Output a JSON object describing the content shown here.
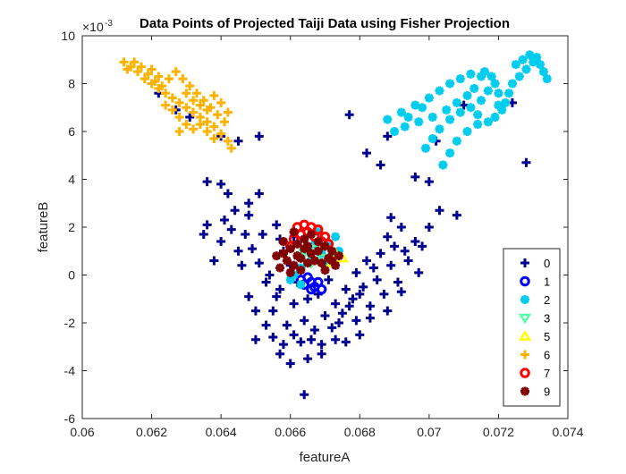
{
  "chart_data": {
    "type": "scatter",
    "title": "Data Points of Projected Taiji Data using Fisher Projection",
    "xlabel": "featureA",
    "ylabel": "featureB",
    "y_exponent_label": "×10",
    "y_exponent_power": "-3",
    "xlim": [
      0.06,
      0.074
    ],
    "ylim": [
      -6,
      10
    ],
    "x_ticks": [
      0.06,
      0.062,
      0.064,
      0.066,
      0.068,
      0.07,
      0.072,
      0.074
    ],
    "x_tick_labels": [
      "0.06",
      "0.062",
      "0.064",
      "0.066",
      "0.068",
      "0.07",
      "0.072",
      "0.074"
    ],
    "y_ticks": [
      -6,
      -4,
      -2,
      0,
      2,
      4,
      6,
      8,
      10
    ],
    "y_tick_labels": [
      "-6",
      "-4",
      "-2",
      "0",
      "2",
      "4",
      "6",
      "8",
      "10"
    ],
    "grid": false,
    "legend_position": "bottom-right",
    "series": [
      {
        "name": "0",
        "marker": "plus",
        "color": "#00008f",
        "points": [
          [
            0.0627,
            6.9
          ],
          [
            0.0622,
            7.6
          ],
          [
            0.0631,
            6.6
          ],
          [
            0.064,
            5.8
          ],
          [
            0.0645,
            5.6
          ],
          [
            0.0651,
            5.8
          ],
          [
            0.0636,
            3.9
          ],
          [
            0.064,
            3.8
          ],
          [
            0.0642,
            3.4
          ],
          [
            0.0648,
            3.0
          ],
          [
            0.0651,
            3.4
          ],
          [
            0.0644,
            2.7
          ],
          [
            0.0648,
            2.5
          ],
          [
            0.0636,
            2.1
          ],
          [
            0.0635,
            1.7
          ],
          [
            0.064,
            1.4
          ],
          [
            0.0645,
            1.0
          ],
          [
            0.0638,
            0.6
          ],
          [
            0.0651,
            0.5
          ],
          [
            0.0648,
            -0.9
          ],
          [
            0.0655,
            -1.5
          ],
          [
            0.065,
            -2.7
          ],
          [
            0.0657,
            -3.3
          ],
          [
            0.066,
            -3.7
          ],
          [
            0.0665,
            -3.5
          ],
          [
            0.0664,
            -5.0
          ],
          [
            0.0669,
            -3.3
          ],
          [
            0.0673,
            -2.7
          ],
          [
            0.0676,
            -2.8
          ],
          [
            0.068,
            -2.5
          ],
          [
            0.0683,
            -1.8
          ],
          [
            0.0688,
            -1.5
          ],
          [
            0.0692,
            -0.7
          ],
          [
            0.0697,
            0.1
          ],
          [
            0.0693,
            1.0
          ],
          [
            0.0696,
            1.4
          ],
          [
            0.0692,
            2.0
          ],
          [
            0.0689,
            2.4
          ],
          [
            0.07,
            2.0
          ],
          [
            0.0703,
            2.7
          ],
          [
            0.0708,
            2.5
          ],
          [
            0.07,
            3.9
          ],
          [
            0.0696,
            4.1
          ],
          [
            0.0686,
            4.6
          ],
          [
            0.0688,
            5.8
          ],
          [
            0.0682,
            5.1
          ],
          [
            0.0677,
            6.7
          ],
          [
            0.071,
            7.1
          ],
          [
            0.0724,
            7.2
          ],
          [
            0.0728,
            4.7
          ],
          [
            0.0702,
            5.6
          ],
          [
            0.0657,
            1.5
          ],
          [
            0.066,
            0.4
          ],
          [
            0.0654,
            0.0
          ],
          [
            0.0657,
            -0.6
          ],
          [
            0.0661,
            -1.2
          ],
          [
            0.0664,
            -1.9
          ],
          [
            0.0667,
            -2.3
          ],
          [
            0.067,
            -1.7
          ],
          [
            0.0673,
            -1.2
          ],
          [
            0.0676,
            -0.6
          ],
          [
            0.0679,
            0.1
          ],
          [
            0.0682,
            0.6
          ],
          [
            0.0685,
            -0.2
          ],
          [
            0.0687,
            -0.8
          ],
          [
            0.0683,
            -1.3
          ],
          [
            0.0679,
            -1.9
          ],
          [
            0.0662,
            -0.3
          ],
          [
            0.0665,
            -1.0
          ],
          [
            0.0668,
            -0.8
          ],
          [
            0.0671,
            -0.2
          ],
          [
            0.0659,
            -2.1
          ],
          [
            0.0656,
            -0.9
          ],
          [
            0.0653,
            -0.3
          ],
          [
            0.0663,
            -2.8
          ],
          [
            0.0672,
            -2.2
          ],
          [
            0.0675,
            -1.6
          ],
          [
            0.0678,
            -1.0
          ],
          [
            0.0681,
            -0.5
          ],
          [
            0.0684,
            0.3
          ],
          [
            0.0686,
            0.9
          ],
          [
            0.0689,
            0.4
          ],
          [
            0.0691,
            -0.3
          ],
          [
            0.0658,
            1.0
          ],
          [
            0.0661,
            1.6
          ],
          [
            0.0656,
            2.1
          ],
          [
            0.0652,
            1.7
          ],
          [
            0.0649,
            1.1
          ],
          [
            0.0646,
            0.4
          ],
          [
            0.0643,
            1.9
          ],
          [
            0.0641,
            2.3
          ],
          [
            0.0647,
            1.7
          ],
          [
            0.065,
            -1.5
          ],
          [
            0.0653,
            -2.1
          ],
          [
            0.0655,
            -2.6
          ],
          [
            0.0658,
            -2.9
          ],
          [
            0.0661,
            -2.5
          ],
          [
            0.0666,
            -2.7
          ],
          [
            0.0669,
            -2.9
          ],
          [
            0.0674,
            -2.0
          ],
          [
            0.0677,
            -1.3
          ],
          [
            0.068,
            -0.8
          ],
          [
            0.0688,
            1.6
          ],
          [
            0.069,
            1.2
          ],
          [
            0.0694,
            0.6
          ],
          [
            0.0698,
            1.2
          ]
        ]
      },
      {
        "name": "1",
        "marker": "circle",
        "color": "#0000ff",
        "points": [
          [
            0.0664,
            -0.4
          ],
          [
            0.0666,
            -0.6
          ],
          [
            0.0668,
            -0.3
          ],
          [
            0.0665,
            -0.1
          ],
          [
            0.0667,
            -0.5
          ],
          [
            0.0663,
            -0.2
          ],
          [
            0.0669,
            -0.6
          ],
          [
            0.0666,
            -0.3
          ]
        ]
      },
      {
        "name": "2",
        "marker": "star",
        "color": "#00ccee",
        "points": [
          [
            0.0688,
            6.5
          ],
          [
            0.0692,
            6.8
          ],
          [
            0.0696,
            7.1
          ],
          [
            0.07,
            7.4
          ],
          [
            0.0703,
            7.7
          ],
          [
            0.0706,
            8.0
          ],
          [
            0.0709,
            8.2
          ],
          [
            0.0712,
            8.4
          ],
          [
            0.0715,
            8.3
          ],
          [
            0.0693,
            6.2
          ],
          [
            0.0697,
            6.4
          ],
          [
            0.0701,
            6.6
          ],
          [
            0.0705,
            6.9
          ],
          [
            0.0708,
            7.2
          ],
          [
            0.0711,
            7.5
          ],
          [
            0.0713,
            7.8
          ],
          [
            0.0699,
            5.3
          ],
          [
            0.0701,
            5.7
          ],
          [
            0.0703,
            6.1
          ],
          [
            0.0706,
            6.5
          ],
          [
            0.0709,
            6.8
          ],
          [
            0.0712,
            7.0
          ],
          [
            0.0715,
            7.3
          ],
          [
            0.0717,
            7.7
          ],
          [
            0.0719,
            8.0
          ],
          [
            0.072,
            7.6
          ],
          [
            0.072,
            7.1
          ],
          [
            0.0704,
            4.6
          ],
          [
            0.0706,
            5.1
          ],
          [
            0.0708,
            5.6
          ],
          [
            0.0711,
            6.0
          ],
          [
            0.0714,
            6.3
          ],
          [
            0.0717,
            6.4
          ],
          [
            0.0719,
            6.6
          ],
          [
            0.0721,
            6.9
          ],
          [
            0.0722,
            7.2
          ],
          [
            0.0723,
            7.6
          ],
          [
            0.0724,
            8.0
          ],
          [
            0.0726,
            8.3
          ],
          [
            0.0728,
            8.6
          ],
          [
            0.073,
            8.9
          ],
          [
            0.0731,
            9.1
          ],
          [
            0.0732,
            8.8
          ],
          [
            0.0733,
            8.5
          ],
          [
            0.0734,
            8.2
          ],
          [
            0.0729,
            9.2
          ],
          [
            0.0727,
            9.0
          ],
          [
            0.0725,
            8.8
          ],
          [
            0.0716,
            8.5
          ],
          [
            0.0718,
            8.3
          ],
          [
            0.069,
            6.0
          ],
          [
            0.0694,
            6.6
          ],
          [
            0.0698,
            7.0
          ],
          [
            0.0714,
            6.7
          ],
          [
            0.0661,
            0.0
          ],
          [
            0.0663,
            0.3
          ],
          [
            0.0666,
            0.6
          ],
          [
            0.0669,
            0.9
          ],
          [
            0.0671,
            1.2
          ],
          [
            0.0673,
            1.6
          ],
          [
            0.0668,
            1.8
          ],
          [
            0.0664,
            1.5
          ],
          [
            0.067,
            0.4
          ],
          [
            0.0672,
            0.8
          ],
          [
            0.0667,
            1.3
          ],
          [
            0.0662,
            0.8
          ],
          [
            0.0665,
            1.0
          ],
          [
            0.0674,
            1.0
          ],
          [
            0.066,
            -0.2
          ],
          [
            0.0663,
            -0.4
          ]
        ]
      },
      {
        "name": "3",
        "marker": "triangle-down",
        "color": "#55ffaa",
        "points": [
          [
            0.0664,
            0.9
          ],
          [
            0.0667,
            1.1
          ],
          [
            0.0669,
            0.7
          ],
          [
            0.0666,
            0.5
          ]
        ]
      },
      {
        "name": "5",
        "marker": "triangle-up",
        "color": "#ffff00",
        "points": [
          [
            0.0673,
            0.9
          ],
          [
            0.0675,
            0.7
          ],
          [
            0.0672,
            0.5
          ]
        ]
      },
      {
        "name": "6",
        "marker": "plus",
        "color": "#ffb300",
        "points": [
          [
            0.0612,
            8.9
          ],
          [
            0.0614,
            8.7
          ],
          [
            0.0616,
            8.5
          ],
          [
            0.0618,
            8.2
          ],
          [
            0.062,
            8.0
          ],
          [
            0.0622,
            7.8
          ],
          [
            0.0624,
            7.6
          ],
          [
            0.0626,
            7.4
          ],
          [
            0.0628,
            7.2
          ],
          [
            0.063,
            7.0
          ],
          [
            0.0632,
            6.8
          ],
          [
            0.0634,
            6.6
          ],
          [
            0.0636,
            6.4
          ],
          [
            0.0638,
            6.2
          ],
          [
            0.064,
            5.9
          ],
          [
            0.0642,
            5.6
          ],
          [
            0.0643,
            5.3
          ],
          [
            0.0613,
            8.6
          ],
          [
            0.0615,
            8.9
          ],
          [
            0.0617,
            8.7
          ],
          [
            0.0619,
            8.4
          ],
          [
            0.0621,
            8.1
          ],
          [
            0.0623,
            7.9
          ],
          [
            0.0625,
            8.2
          ],
          [
            0.0627,
            8.5
          ],
          [
            0.0629,
            8.2
          ],
          [
            0.0631,
            7.9
          ],
          [
            0.0633,
            7.6
          ],
          [
            0.0635,
            7.3
          ],
          [
            0.0637,
            7.0
          ],
          [
            0.0639,
            6.7
          ],
          [
            0.0641,
            6.4
          ],
          [
            0.063,
            7.6
          ],
          [
            0.0632,
            7.3
          ],
          [
            0.0634,
            7.1
          ],
          [
            0.0636,
            6.9
          ],
          [
            0.0638,
            7.5
          ],
          [
            0.064,
            7.2
          ],
          [
            0.0642,
            6.8
          ],
          [
            0.0624,
            7.1
          ],
          [
            0.0626,
            6.9
          ],
          [
            0.0628,
            6.6
          ],
          [
            0.063,
            6.3
          ],
          [
            0.0632,
            6.1
          ],
          [
            0.0628,
            6.0
          ],
          [
            0.0622,
            8.3
          ],
          [
            0.062,
            8.6
          ],
          [
            0.0634,
            6.3
          ],
          [
            0.0636,
            6.0
          ],
          [
            0.0638,
            5.7
          ]
        ]
      },
      {
        "name": "7",
        "marker": "circle",
        "color": "#ff0000",
        "points": [
          [
            0.0662,
            2.0
          ],
          [
            0.0664,
            2.1
          ],
          [
            0.0666,
            2.0
          ],
          [
            0.0668,
            1.9
          ],
          [
            0.0665,
            1.8
          ],
          [
            0.0667,
            1.6
          ],
          [
            0.0663,
            1.7
          ],
          [
            0.0661,
            1.5
          ],
          [
            0.0669,
            1.4
          ],
          [
            0.067,
            1.6
          ],
          [
            0.066,
            1.2
          ],
          [
            0.0671,
            1.3
          ]
        ]
      },
      {
        "name": "9",
        "marker": "star",
        "color": "#800000",
        "points": [
          [
            0.0658,
            0.9
          ],
          [
            0.066,
            1.1
          ],
          [
            0.0662,
            1.3
          ],
          [
            0.0664,
            1.1
          ],
          [
            0.0666,
            0.9
          ],
          [
            0.0668,
            1.0
          ],
          [
            0.067,
            1.2
          ],
          [
            0.0672,
            1.0
          ],
          [
            0.0674,
            0.8
          ],
          [
            0.0659,
            0.6
          ],
          [
            0.0661,
            0.4
          ],
          [
            0.0663,
            0.7
          ],
          [
            0.0665,
            0.5
          ],
          [
            0.0667,
            0.6
          ],
          [
            0.0669,
            0.5
          ],
          [
            0.0671,
            0.7
          ],
          [
            0.0673,
            0.4
          ],
          [
            0.0657,
            0.3
          ],
          [
            0.066,
            0.1
          ],
          [
            0.0662,
            0.8
          ],
          [
            0.0664,
            1.5
          ],
          [
            0.0666,
            1.7
          ],
          [
            0.0668,
            1.4
          ],
          [
            0.0663,
            0.2
          ],
          [
            0.067,
            0.2
          ],
          [
            0.0672,
            0.6
          ],
          [
            0.0656,
            0.8
          ],
          [
            0.0658,
            1.4
          ],
          [
            0.0661,
            1.8
          ],
          [
            0.0665,
            1.2
          ]
        ]
      }
    ]
  }
}
